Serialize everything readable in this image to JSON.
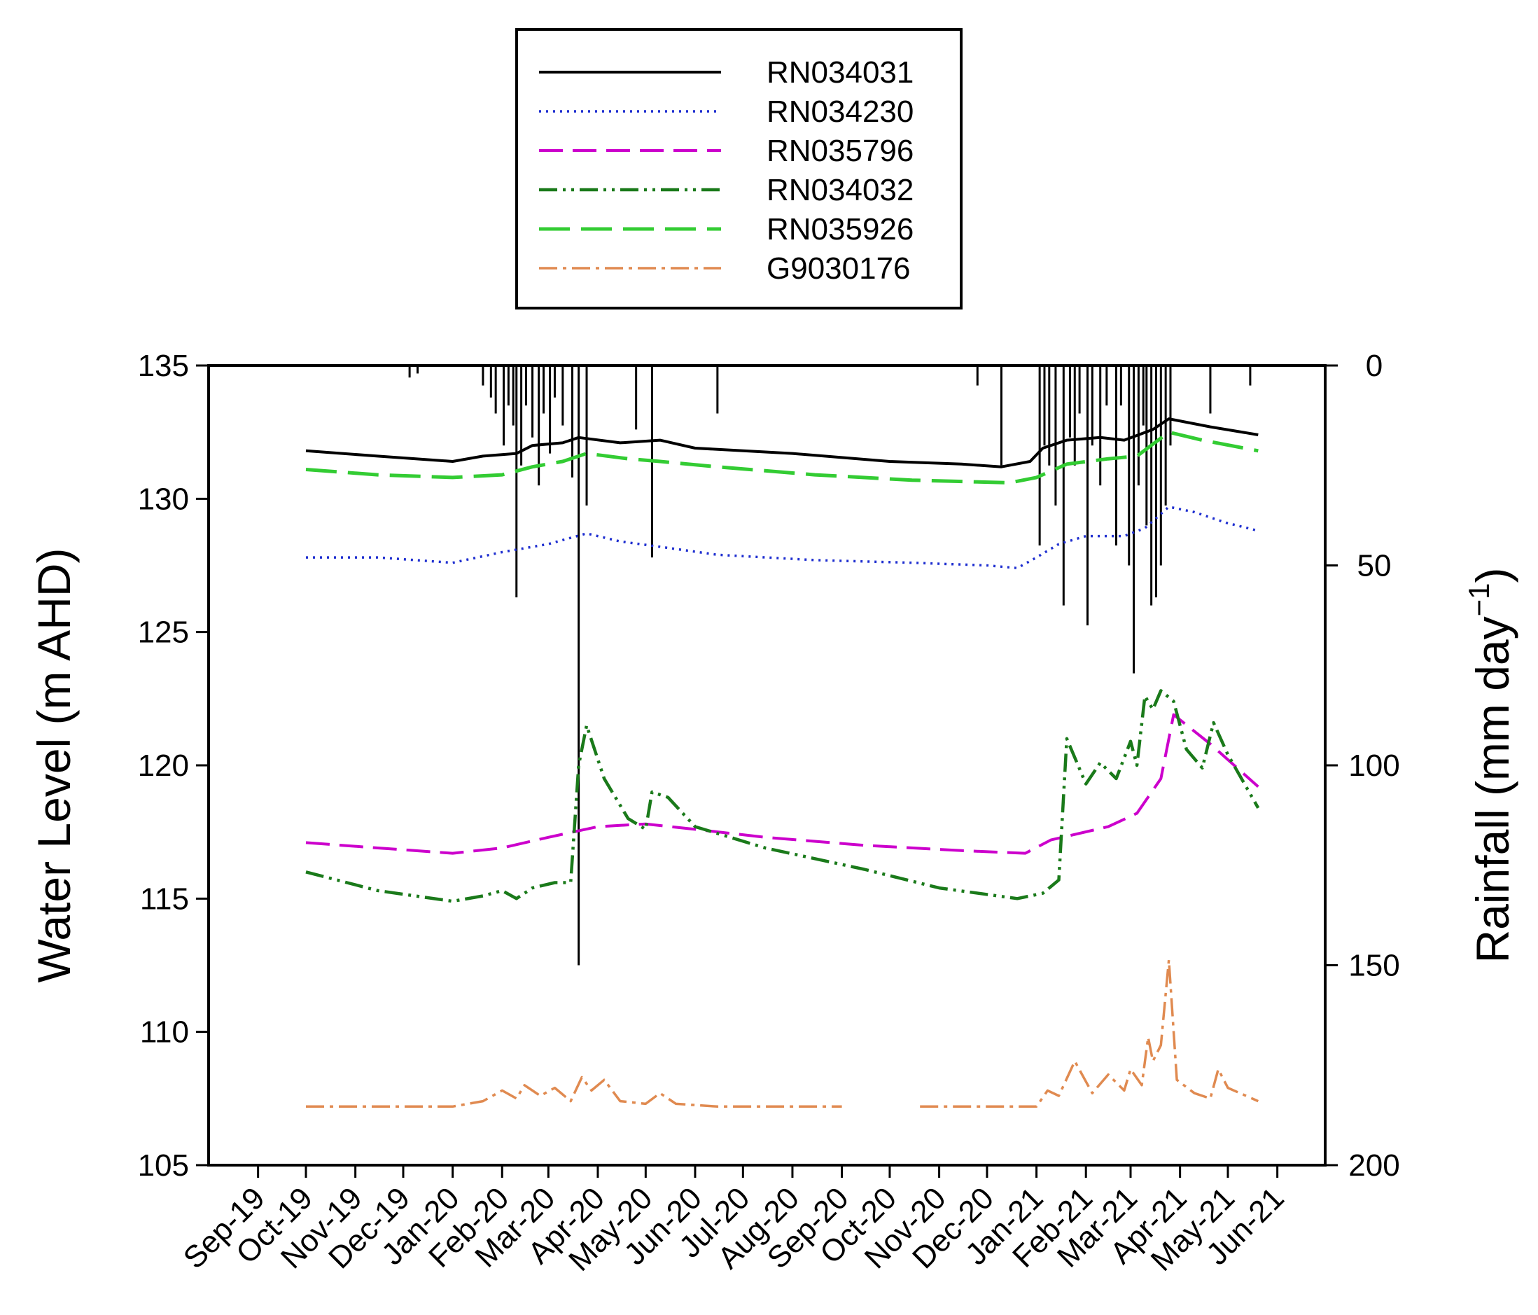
{
  "chart_data": {
    "type": "line",
    "xlabel": "",
    "x_tick_labels": [
      "Sep-19",
      "Oct-19",
      "Nov-19",
      "Dec-19",
      "Jan-20",
      "Feb-20",
      "Mar-20",
      "Apr-20",
      "May-20",
      "Jun-20",
      "Jul-20",
      "Aug-20",
      "Sep-20",
      "Oct-20",
      "Nov-20",
      "Dec-20",
      "Jan-21",
      "Feb-21",
      "Mar-21",
      "Apr-21",
      "May-21",
      "Jun-21"
    ],
    "y_left": {
      "label": "Water Level (m AHD)",
      "ylim": [
        105,
        135
      ],
      "ticks": [
        105,
        110,
        115,
        120,
        125,
        130,
        135
      ]
    },
    "y_right": {
      "label_main": "Rainfall (mm day",
      "label_sup": "−1",
      "label_end": ")",
      "ylim": [
        200,
        0
      ],
      "ticks": [
        0,
        50,
        100,
        150,
        200
      ],
      "inverted": true
    },
    "legend": {
      "placement": "top-center"
    },
    "series": [
      {
        "name": "RN034031",
        "color": "#000000",
        "dash": "solid",
        "points": [
          [
            "2019-10-01",
            131.8
          ],
          [
            "2019-11-15",
            131.6
          ],
          [
            "2020-01-01",
            131.4
          ],
          [
            "2020-01-20",
            131.6
          ],
          [
            "2020-02-10",
            131.7
          ],
          [
            "2020-02-20",
            132.0
          ],
          [
            "2020-03-10",
            132.1
          ],
          [
            "2020-03-20",
            132.3
          ],
          [
            "2020-04-15",
            132.1
          ],
          [
            "2020-05-10",
            132.2
          ],
          [
            "2020-06-01",
            131.9
          ],
          [
            "2020-08-01",
            131.7
          ],
          [
            "2020-10-01",
            131.4
          ],
          [
            "2020-11-15",
            131.3
          ],
          [
            "2020-12-10",
            131.2
          ],
          [
            "2020-12-28",
            131.4
          ],
          [
            "2021-01-05",
            131.9
          ],
          [
            "2021-01-20",
            132.2
          ],
          [
            "2021-02-10",
            132.3
          ],
          [
            "2021-02-25",
            132.2
          ],
          [
            "2021-03-15",
            132.6
          ],
          [
            "2021-03-25",
            133.0
          ],
          [
            "2021-04-20",
            132.7
          ],
          [
            "2021-05-20",
            132.4
          ]
        ]
      },
      {
        "name": "RN034230",
        "color": "#1f2fd0",
        "dash": "dotted",
        "points": [
          [
            "2019-10-01",
            127.8
          ],
          [
            "2019-11-15",
            127.8
          ],
          [
            "2020-01-01",
            127.6
          ],
          [
            "2020-02-01",
            128.0
          ],
          [
            "2020-03-01",
            128.3
          ],
          [
            "2020-03-25",
            128.7
          ],
          [
            "2020-04-15",
            128.4
          ],
          [
            "2020-05-10",
            128.2
          ],
          [
            "2020-06-15",
            127.9
          ],
          [
            "2020-08-15",
            127.7
          ],
          [
            "2020-10-15",
            127.6
          ],
          [
            "2020-12-01",
            127.5
          ],
          [
            "2020-12-20",
            127.4
          ],
          [
            "2021-01-01",
            127.8
          ],
          [
            "2021-01-15",
            128.3
          ],
          [
            "2021-02-01",
            128.6
          ],
          [
            "2021-02-25",
            128.6
          ],
          [
            "2021-03-10",
            128.9
          ],
          [
            "2021-03-25",
            129.7
          ],
          [
            "2021-04-10",
            129.5
          ],
          [
            "2021-04-30",
            129.1
          ],
          [
            "2021-05-20",
            128.8
          ]
        ]
      },
      {
        "name": "RN035796",
        "color": "#cc00cc",
        "dash": "long-dash",
        "points": [
          [
            "2019-10-01",
            117.1
          ],
          [
            "2019-11-15",
            116.9
          ],
          [
            "2020-01-01",
            116.7
          ],
          [
            "2020-02-01",
            116.9
          ],
          [
            "2020-03-01",
            117.3
          ],
          [
            "2020-04-01",
            117.7
          ],
          [
            "2020-05-01",
            117.8
          ],
          [
            "2020-06-01",
            117.6
          ],
          [
            "2020-07-15",
            117.3
          ],
          [
            "2020-09-15",
            117.0
          ],
          [
            "2020-11-15",
            116.8
          ],
          [
            "2020-12-25",
            116.7
          ],
          [
            "2021-01-10",
            117.2
          ],
          [
            "2021-02-15",
            117.7
          ],
          [
            "2021-03-05",
            118.2
          ],
          [
            "2021-03-20",
            119.5
          ],
          [
            "2021-03-28",
            121.9
          ],
          [
            "2021-04-20",
            120.8
          ],
          [
            "2021-05-20",
            119.2
          ]
        ]
      },
      {
        "name": "RN034032",
        "color": "#1a7a1a",
        "dash": "dash-dot-dot",
        "points": [
          [
            "2019-10-01",
            116.0
          ],
          [
            "2019-11-15",
            115.3
          ],
          [
            "2020-01-01",
            114.9
          ],
          [
            "2020-01-20",
            115.1
          ],
          [
            "2020-02-01",
            115.3
          ],
          [
            "2020-02-10",
            115.0
          ],
          [
            "2020-02-20",
            115.4
          ],
          [
            "2020-03-05",
            115.6
          ],
          [
            "2020-03-15",
            115.6
          ],
          [
            "2020-03-20",
            120.0
          ],
          [
            "2020-03-25",
            121.5
          ],
          [
            "2020-04-05",
            119.5
          ],
          [
            "2020-04-20",
            118.0
          ],
          [
            "2020-05-01",
            117.6
          ],
          [
            "2020-05-05",
            119.0
          ],
          [
            "2020-05-15",
            118.8
          ],
          [
            "2020-06-01",
            117.7
          ],
          [
            "2020-07-15",
            116.9
          ],
          [
            "2020-09-15",
            116.1
          ],
          [
            "2020-11-01",
            115.4
          ],
          [
            "2020-12-20",
            115.0
          ],
          [
            "2021-01-05",
            115.2
          ],
          [
            "2021-01-15",
            115.7
          ],
          [
            "2021-01-20",
            121.0
          ],
          [
            "2021-02-01",
            119.3
          ],
          [
            "2021-02-10",
            120.1
          ],
          [
            "2021-02-20",
            119.5
          ],
          [
            "2021-03-01",
            120.9
          ],
          [
            "2021-03-05",
            120.0
          ],
          [
            "2021-03-10",
            122.6
          ],
          [
            "2021-03-15",
            122.1
          ],
          [
            "2021-03-20",
            122.8
          ],
          [
            "2021-03-28",
            122.4
          ],
          [
            "2021-04-05",
            120.6
          ],
          [
            "2021-04-15",
            119.9
          ],
          [
            "2021-04-22",
            121.6
          ],
          [
            "2021-05-01",
            120.4
          ],
          [
            "2021-05-20",
            118.4
          ]
        ]
      },
      {
        "name": "RN035926",
        "color": "#33cc33",
        "dash": "dashed",
        "points": [
          [
            "2019-10-01",
            131.1
          ],
          [
            "2019-11-15",
            130.9
          ],
          [
            "2020-01-01",
            130.8
          ],
          [
            "2020-02-01",
            130.9
          ],
          [
            "2020-02-20",
            131.2
          ],
          [
            "2020-03-10",
            131.4
          ],
          [
            "2020-03-25",
            131.7
          ],
          [
            "2020-04-20",
            131.5
          ],
          [
            "2020-05-10",
            131.4
          ],
          [
            "2020-06-15",
            131.2
          ],
          [
            "2020-08-15",
            130.9
          ],
          [
            "2020-10-15",
            130.7
          ],
          [
            "2020-12-15",
            130.6
          ],
          [
            "2021-01-01",
            130.8
          ],
          [
            "2021-01-20",
            131.3
          ],
          [
            "2021-02-15",
            131.5
          ],
          [
            "2021-03-05",
            131.6
          ],
          [
            "2021-03-25",
            132.5
          ],
          [
            "2021-04-15",
            132.2
          ],
          [
            "2021-05-20",
            131.8
          ]
        ]
      },
      {
        "name": "G9030176",
        "color": "#e08a50",
        "dash": "dash-dot",
        "points": [
          [
            "2019-10-01",
            107.2
          ],
          [
            "2020-01-01",
            107.2
          ],
          [
            "2020-01-20",
            107.4
          ],
          [
            "2020-02-01",
            107.8
          ],
          [
            "2020-02-10",
            107.5
          ],
          [
            "2020-02-15",
            108.0
          ],
          [
            "2020-02-25",
            107.6
          ],
          [
            "2020-03-05",
            107.9
          ],
          [
            "2020-03-15",
            107.4
          ],
          [
            "2020-03-22",
            108.3
          ],
          [
            "2020-03-28",
            107.8
          ],
          [
            "2020-04-05",
            108.2
          ],
          [
            "2020-04-15",
            107.4
          ],
          [
            "2020-05-01",
            107.3
          ],
          [
            "2020-05-10",
            107.7
          ],
          [
            "2020-05-20",
            107.3
          ],
          [
            "2020-06-15",
            107.2
          ],
          [
            "2020-09-01",
            107.2
          ],
          null,
          [
            "2020-10-20",
            107.2
          ],
          [
            "2021-01-01",
            107.2
          ],
          [
            "2021-01-08",
            107.8
          ],
          [
            "2021-01-15",
            107.6
          ],
          [
            "2021-01-25",
            108.9
          ],
          [
            "2021-02-05",
            107.7
          ],
          [
            "2021-02-15",
            108.4
          ],
          [
            "2021-02-25",
            107.8
          ],
          [
            "2021-03-01",
            108.6
          ],
          [
            "2021-03-08",
            108.0
          ],
          [
            "2021-03-12",
            109.8
          ],
          [
            "2021-03-15",
            108.9
          ],
          [
            "2021-03-20",
            109.5
          ],
          [
            "2021-03-25",
            112.7
          ],
          [
            "2021-03-30",
            108.2
          ],
          [
            "2021-04-10",
            107.7
          ],
          [
            "2021-04-20",
            107.5
          ],
          [
            "2021-04-25",
            108.6
          ],
          [
            "2021-05-01",
            107.9
          ],
          [
            "2021-05-20",
            107.4
          ]
        ]
      }
    ],
    "rainfall": {
      "color": "#000000",
      "events": [
        [
          "2019-12-05",
          3
        ],
        [
          "2019-12-10",
          2
        ],
        [
          "2020-01-20",
          5
        ],
        [
          "2020-01-25",
          8
        ],
        [
          "2020-01-28",
          12
        ],
        [
          "2020-02-02",
          20
        ],
        [
          "2020-02-05",
          10
        ],
        [
          "2020-02-08",
          15
        ],
        [
          "2020-02-10",
          58
        ],
        [
          "2020-02-13",
          25
        ],
        [
          "2020-02-16",
          10
        ],
        [
          "2020-02-20",
          18
        ],
        [
          "2020-02-24",
          30
        ],
        [
          "2020-02-27",
          12
        ],
        [
          "2020-03-02",
          22
        ],
        [
          "2020-03-05",
          8
        ],
        [
          "2020-03-10",
          15
        ],
        [
          "2020-03-16",
          28
        ],
        [
          "2020-03-20",
          150
        ],
        [
          "2020-03-25",
          35
        ],
        [
          "2020-04-25",
          16
        ],
        [
          "2020-05-05",
          48
        ],
        [
          "2020-06-15",
          12
        ],
        [
          "2020-11-25",
          5
        ],
        [
          "2020-12-10",
          25
        ],
        [
          "2021-01-03",
          45
        ],
        [
          "2021-01-06",
          20
        ],
        [
          "2021-01-09",
          25
        ],
        [
          "2021-01-13",
          35
        ],
        [
          "2021-01-18",
          60
        ],
        [
          "2021-01-22",
          18
        ],
        [
          "2021-01-25",
          25
        ],
        [
          "2021-01-28",
          12
        ],
        [
          "2021-02-02",
          65
        ],
        [
          "2021-02-05",
          20
        ],
        [
          "2021-02-10",
          30
        ],
        [
          "2021-02-14",
          10
        ],
        [
          "2021-02-20",
          45
        ],
        [
          "2021-02-23",
          10
        ],
        [
          "2021-02-28",
          50
        ],
        [
          "2021-03-03",
          77
        ],
        [
          "2021-03-06",
          30
        ],
        [
          "2021-03-09",
          15
        ],
        [
          "2021-03-11",
          40
        ],
        [
          "2021-03-14",
          60
        ],
        [
          "2021-03-17",
          58
        ],
        [
          "2021-03-20",
          50
        ],
        [
          "2021-03-23",
          35
        ],
        [
          "2021-03-26",
          20
        ],
        [
          "2021-04-20",
          12
        ],
        [
          "2021-05-15",
          5
        ]
      ]
    }
  }
}
